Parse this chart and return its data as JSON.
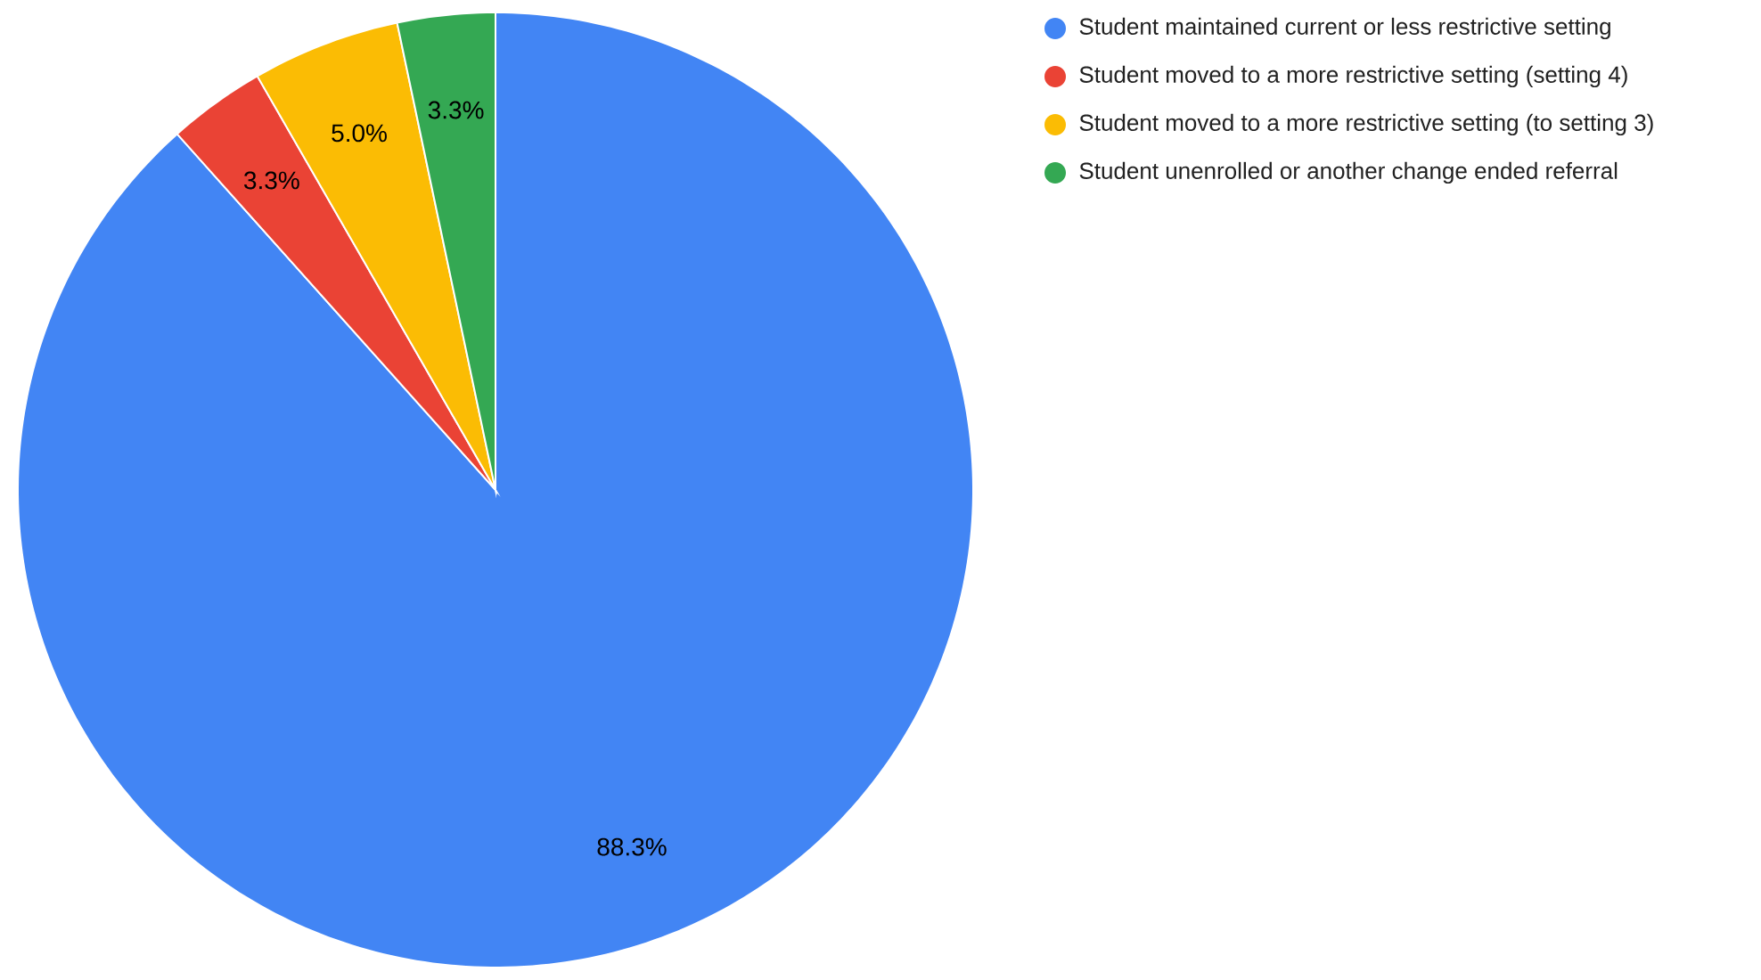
{
  "chart_data": {
    "type": "pie",
    "categories": [
      "Student maintained current or less restrictive setting",
      "Student moved to a more restrictive setting (setting 4)",
      "Student moved to a more restrictive setting (to setting 3)",
      "Student unenrolled or another change ended referral"
    ],
    "values": [
      88.3,
      3.3,
      5.0,
      3.3
    ],
    "value_labels": [
      "88.3%",
      "3.3%",
      "5.0%",
      "3.3%"
    ],
    "colors": [
      "#4285f4",
      "#ea4335",
      "#fbbc04",
      "#34a853"
    ],
    "legend": "top right"
  }
}
